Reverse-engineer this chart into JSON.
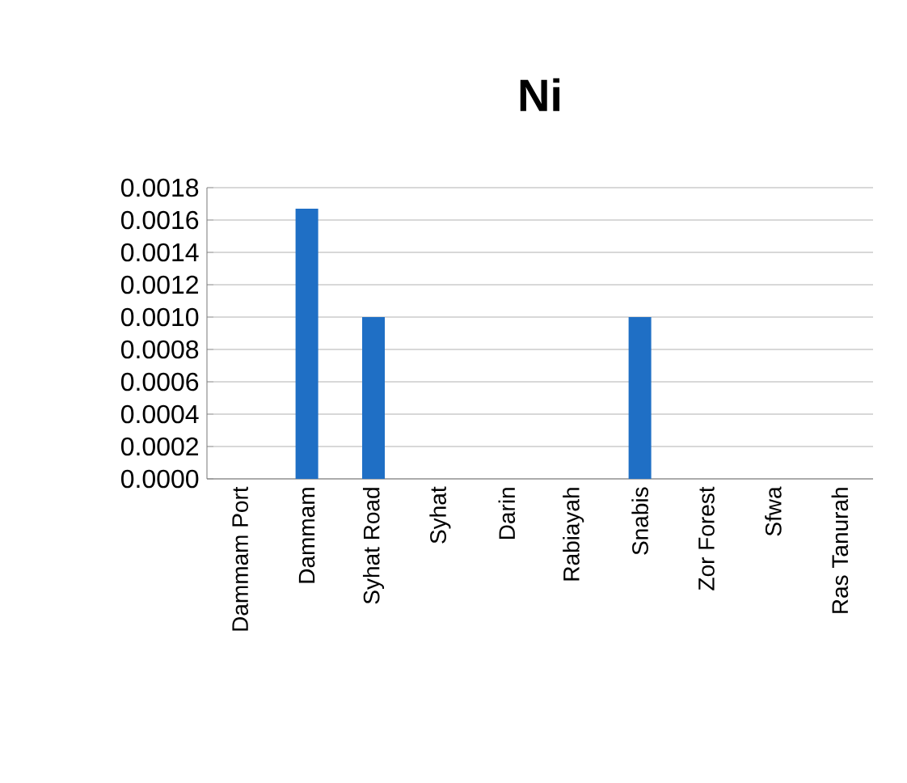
{
  "chart_data": {
    "type": "bar",
    "title": "**Ni**",
    "categories": [
      "Dammam Port",
      "Dammam",
      "Syhat Road",
      "Syhat",
      "Darin",
      "Rabiayah",
      "Snabis",
      "Zor Forest",
      "Sfwa",
      "Ras Tanurah"
    ],
    "values": [
      0,
      0.00167,
      0.001,
      0,
      0,
      0,
      0.001,
      0,
      0,
      0
    ],
    "color": "#1f6fc5",
    "ylim": [
      0,
      0.0018
    ],
    "yticks": [
      {
        "value": 0,
        "label": "0.0000"
      },
      {
        "value": 0.0002,
        "label": "0.0002"
      },
      {
        "value": 0.0004,
        "label": "0.0004"
      },
      {
        "value": 0.0006,
        "label": "0.0006"
      },
      {
        "value": 0.0008,
        "label": "0.0008"
      },
      {
        "value": 0.001,
        "label": "0.0010"
      },
      {
        "value": 0.0012,
        "label": "0.0012"
      },
      {
        "value": 0.0014,
        "label": "0.0014"
      },
      {
        "value": 0.0016,
        "label": "0.0016"
      },
      {
        "value": 0.0018,
        "label": "0.0018"
      }
    ],
    "grid": "y"
  }
}
